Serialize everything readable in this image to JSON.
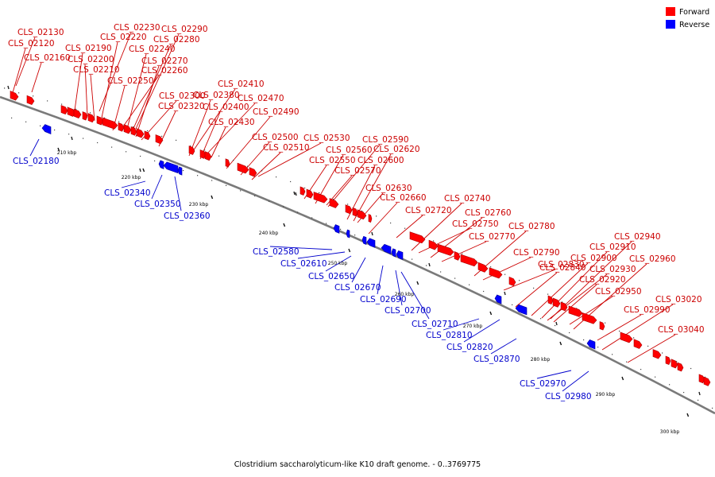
{
  "caption": "Clostridium saccharolyticum-like K10 draft genome. - 0..3769775",
  "legend": [
    {
      "label": "Forward",
      "color": "#ff0000"
    },
    {
      "label": "Reverse",
      "color": "#0000ff"
    }
  ],
  "colors": {
    "forward": "#ff0000",
    "reverse": "#0000ff",
    "backbone": "#808080",
    "forward_label": "#cc0000",
    "reverse_label": "#0000cc"
  },
  "ticks": [
    "210 kbp",
    "220 kbp",
    "230 kbp",
    "240 kbp",
    "250 kbp",
    "260 kbp",
    "270 kbp",
    "280 kbp",
    "290 kbp",
    "300 kbp"
  ],
  "forward_genes": [
    "CLS_02130",
    "CLS_02120",
    "CLS_02160",
    "CLS_02230",
    "CLS_02290",
    "CLS_02220",
    "CLS_02280",
    "CLS_02190",
    "CLS_02240",
    "CLS_02200",
    "CLS_02270",
    "CLS_02210",
    "CLS_02260",
    "CLS_02250",
    "CLS_02300",
    "CLS_02320",
    "CLS_02410",
    "CLS_02380",
    "CLS_02470",
    "CLS_02400",
    "CLS_02490",
    "CLS_02430",
    "CLS_02500",
    "CLS_02530",
    "CLS_02510",
    "CLS_02590",
    "CLS_02560",
    "CLS_02620",
    "CLS_02550",
    "CLS_02600",
    "CLS_02570",
    "CLS_02630",
    "CLS_02660",
    "CLS_02740",
    "CLS_02720",
    "CLS_02760",
    "CLS_02750",
    "CLS_02780",
    "CLS_02770",
    "CLS_02790",
    "CLS_02830",
    "CLS_02940",
    "CLS_02910",
    "CLS_02900",
    "CLS_02960",
    "CLS_02840",
    "CLS_02930",
    "CLS_02920",
    "CLS_02950",
    "CLS_03020",
    "CLS_02990",
    "CLS_03040"
  ],
  "reverse_genes": [
    "CLS_02180",
    "CLS_02340",
    "CLS_02350",
    "CLS_02360",
    "CLS_02580",
    "CLS_02610",
    "CLS_02650",
    "CLS_02670",
    "CLS_02690",
    "CLS_02700",
    "CLS_02710",
    "CLS_02810",
    "CLS_02820",
    "CLS_02870",
    "CLS_02970",
    "CLS_02980"
  ]
}
